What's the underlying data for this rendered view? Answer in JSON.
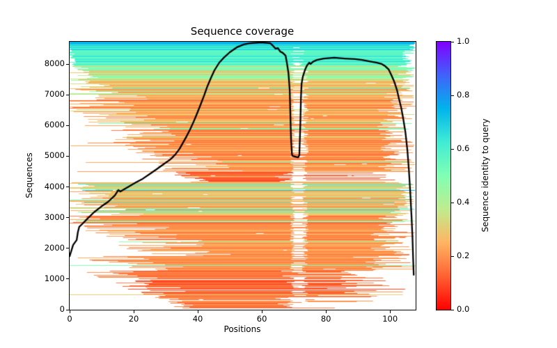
{
  "title": "Sequence coverage",
  "axes": {
    "x": {
      "label": "Positions",
      "ticks": [
        0,
        20,
        40,
        60,
        80,
        100
      ],
      "min": 0,
      "max": 108
    },
    "y": {
      "label": "Sequences",
      "ticks": [
        0,
        1000,
        2000,
        3000,
        4000,
        5000,
        6000,
        7000,
        8000
      ],
      "min": 0,
      "max": 8730
    }
  },
  "colorbar": {
    "label": "Sequence identity to query",
    "ticks": [
      "0.0",
      "0.2",
      "0.4",
      "0.6",
      "0.8",
      "1.0"
    ],
    "min": 0.0,
    "max": 1.0,
    "colormap": "rainbow (0=red, 1=violet)",
    "gradient_stops_bottom_to_top": [
      "#ff0000",
      "#ff6232",
      "#ffb462",
      "#bfec8e",
      "#80ffb4",
      "#40ecd4",
      "#00b4ec",
      "#4062fa",
      "#8000ff"
    ]
  },
  "colors": {
    "background": "#ffffff",
    "coverage_line": "#000000",
    "spine": "#000000",
    "empty_cell": "#ffffff"
  },
  "chart_data": {
    "type": "heatmap",
    "title": "Sequence coverage",
    "xlabel": "Positions",
    "ylabel": "Sequences",
    "xlim": [
      0,
      108
    ],
    "ylim": [
      0,
      8730
    ],
    "n_sequences": 8730,
    "n_positions": 108,
    "legend": "colorbar: Sequence identity to query (0.0 - 1.0)",
    "gap_column": {
      "x_from": 69.5,
      "x_to": 73.5,
      "note": "white low-coverage column causing the dip in the black line"
    },
    "coverage_line": {
      "name": "coverage (number of sequences per position)",
      "color": "#000000",
      "points": [
        [
          0,
          1745
        ],
        [
          1.1,
          2110
        ],
        [
          2.2,
          2270
        ],
        [
          2.6,
          2540
        ],
        [
          3,
          2700
        ],
        [
          3.9,
          2790
        ],
        [
          5.4,
          2950
        ],
        [
          7.6,
          3175
        ],
        [
          9.8,
          3355
        ],
        [
          12,
          3515
        ],
        [
          14.1,
          3720
        ],
        [
          15.2,
          3900
        ],
        [
          15.8,
          3850
        ],
        [
          17,
          3925
        ],
        [
          18.5,
          4015
        ],
        [
          20.7,
          4150
        ],
        [
          22.8,
          4265
        ],
        [
          25,
          4420
        ],
        [
          27.2,
          4580
        ],
        [
          29.3,
          4740
        ],
        [
          31.5,
          4900
        ],
        [
          33,
          5060
        ],
        [
          34.3,
          5240
        ],
        [
          35.4,
          5445
        ],
        [
          36.5,
          5650
        ],
        [
          37.6,
          5875
        ],
        [
          38.7,
          6125
        ],
        [
          39.8,
          6400
        ],
        [
          40.9,
          6690
        ],
        [
          42,
          6985
        ],
        [
          43,
          7280
        ],
        [
          44.1,
          7550
        ],
        [
          45.2,
          7800
        ],
        [
          46.7,
          8050
        ],
        [
          48.3,
          8230
        ],
        [
          50,
          8390
        ],
        [
          52.2,
          8550
        ],
        [
          54.3,
          8640
        ],
        [
          56.5,
          8685
        ],
        [
          59.8,
          8710
        ],
        [
          62.6,
          8685
        ],
        [
          63.5,
          8595
        ],
        [
          64.3,
          8505
        ],
        [
          65,
          8525
        ],
        [
          65.7,
          8415
        ],
        [
          66.5,
          8370
        ],
        [
          67.4,
          8280
        ],
        [
          67.8,
          8050
        ],
        [
          68.3,
          7710
        ],
        [
          68.7,
          7145
        ],
        [
          69.1,
          5555
        ],
        [
          69.4,
          5060
        ],
        [
          69.6,
          5010
        ],
        [
          71.3,
          4965
        ],
        [
          71.7,
          5035
        ],
        [
          72,
          6010
        ],
        [
          72.2,
          6920
        ],
        [
          72.4,
          7370
        ],
        [
          72.8,
          7600
        ],
        [
          73.5,
          7825
        ],
        [
          74.1,
          7960
        ],
        [
          74.8,
          8050
        ],
        [
          75.2,
          8005
        ],
        [
          75.9,
          8075
        ],
        [
          77.2,
          8140
        ],
        [
          79.3,
          8185
        ],
        [
          82.6,
          8210
        ],
        [
          85.9,
          8185
        ],
        [
          89.1,
          8165
        ],
        [
          91.3,
          8140
        ],
        [
          93.5,
          8095
        ],
        [
          95.7,
          8050
        ],
        [
          97.4,
          8005
        ],
        [
          98.5,
          7935
        ],
        [
          99.6,
          7825
        ],
        [
          100.4,
          7645
        ],
        [
          101.1,
          7485
        ],
        [
          101.5,
          7370
        ],
        [
          102.2,
          7145
        ],
        [
          102.8,
          6870
        ],
        [
          103.5,
          6575
        ],
        [
          104.1,
          6235
        ],
        [
          104.8,
          5785
        ],
        [
          105.4,
          5215
        ],
        [
          105.9,
          4535
        ],
        [
          106.3,
          3855
        ],
        [
          106.7,
          3060
        ],
        [
          107,
          2380
        ],
        [
          107.2,
          1700
        ],
        [
          107.4,
          1135
        ]
      ]
    },
    "msa_bands": [
      {
        "seq_from": 8640,
        "seq_to": 8730,
        "start_top": 0,
        "start_bottom": 0,
        "start_jitter": 0,
        "early_frac": 0,
        "end_range": [
          107.5,
          108
        ],
        "gap_prob": 0.06,
        "gap_range": [
          70.2,
          71.2
        ],
        "speck_prob": 0.01,
        "density": 1,
        "palette": [
          [
            1,
            0.73,
            0.78
          ]
        ]
      },
      {
        "seq_from": 8460,
        "seq_to": 8640,
        "start_top": 0,
        "start_bottom": 0,
        "start_jitter": 0.5,
        "early_frac": 0,
        "end_range": [
          106,
          108
        ],
        "gap_prob": 0.12,
        "gap_range": [
          70,
          71.8
        ],
        "speck_prob": 0.02,
        "density": 1,
        "palette": [
          [
            0.6,
            0.66,
            0.74
          ],
          [
            0.4,
            0.58,
            0.66
          ]
        ]
      },
      {
        "seq_from": 7940,
        "seq_to": 8460,
        "start_top": 0,
        "start_bottom": 1,
        "start_jitter": 1.5,
        "early_frac": 0,
        "end_range": [
          103,
          108
        ],
        "gap_prob": 0.28,
        "gap_range": [
          69.8,
          72.6
        ],
        "speck_prob": 0.04,
        "density": 1,
        "palette": [
          [
            0.55,
            0.58,
            0.68
          ],
          [
            0.35,
            0.5,
            0.6
          ],
          [
            0.1,
            0.44,
            0.52
          ]
        ]
      },
      {
        "seq_from": 7560,
        "seq_to": 7940,
        "start_top": 0,
        "start_bottom": 6,
        "start_jitter": 5,
        "early_frac": 0,
        "end_range": [
          102,
          108
        ],
        "gap_prob": 0.4,
        "speck_prob": 0.05,
        "density": 1,
        "palette": [
          [
            0.4,
            0.44,
            0.58
          ],
          [
            0.3,
            0.33,
            0.46
          ],
          [
            0.3,
            0.2,
            0.32
          ]
        ]
      },
      {
        "seq_from": 7280,
        "seq_to": 7560,
        "start_top": 0,
        "start_bottom": 10,
        "start_jitter": 8,
        "early_frac": 0,
        "end_range": [
          100,
          108
        ],
        "gap_prob": 0.48,
        "speck_prob": 0.06,
        "density": 1,
        "palette": [
          [
            0.5,
            0.17,
            0.28
          ],
          [
            0.22,
            0.28,
            0.38
          ],
          [
            0.28,
            0.4,
            0.6
          ]
        ]
      },
      {
        "seq_from": 6850,
        "seq_to": 7280,
        "start_top": 1,
        "start_bottom": 16,
        "start_jitter": 11,
        "early_frac": 0,
        "end_range": [
          98,
          108
        ],
        "gap_prob": 0.5,
        "speck_prob": 0.06,
        "density": 1,
        "palette": [
          [
            0.7,
            0.16,
            0.28
          ],
          [
            0.17,
            0.28,
            0.4
          ],
          [
            0.13,
            0.45,
            0.63
          ]
        ]
      },
      {
        "seq_from": 4480,
        "seq_to": 6850,
        "start_top": 4,
        "start_bottom": 42,
        "start_jitter": 13,
        "early_frac": 0.1,
        "end_range": [
          96,
          108
        ],
        "gap_prob": 0.55,
        "speck_prob": 0.06,
        "density": 1,
        "palette": [
          [
            0.91,
            0.14,
            0.27
          ],
          [
            0.05,
            0.28,
            0.38
          ],
          [
            0.04,
            0.38,
            0.58
          ]
        ]
      },
      {
        "seq_from": 4150,
        "seq_to": 4480,
        "start_top": 35,
        "start_bottom": 40,
        "start_jitter": 4,
        "early_frac": 0,
        "short_end_frac": 0.55,
        "short_end_range": [
          64,
          71
        ],
        "end_range": [
          88,
          104
        ],
        "gap_prob": 0.35,
        "speck_prob": 0.03,
        "density": 1,
        "palette": [
          [
            0.92,
            0.08,
            0.16
          ],
          [
            0.08,
            0.2,
            0.3
          ]
        ]
      },
      {
        "seq_from": 3580,
        "seq_to": 4150,
        "start_top": 1,
        "start_bottom": 8,
        "start_jitter": 8,
        "early_frac": 0.3,
        "end_range": [
          102,
          108
        ],
        "gap_prob": 0.45,
        "speck_prob": 0.04,
        "density": 1,
        "palette": [
          [
            0.4,
            0.2,
            0.3
          ],
          [
            0.15,
            0.7,
            0.78
          ],
          [
            0.15,
            0.53,
            0.68
          ],
          [
            0.12,
            0.4,
            0.5
          ],
          [
            0.18,
            0.27,
            0.36
          ]
        ]
      },
      {
        "seq_from": 3050,
        "seq_to": 3580,
        "start_top": 1,
        "start_bottom": 16,
        "start_jitter": 11,
        "early_frac": 0,
        "end_range": [
          100,
          108
        ],
        "gap_prob": 0.5,
        "speck_prob": 0.05,
        "density": 1,
        "palette": [
          [
            0.76,
            0.16,
            0.28
          ],
          [
            0.15,
            0.5,
            0.66
          ],
          [
            0.09,
            0.38,
            0.48
          ]
        ]
      },
      {
        "seq_from": 1750,
        "seq_to": 3050,
        "start_top": 8,
        "start_bottom": 38,
        "start_jitter": 15,
        "early_frac": 0.07,
        "end_range": [
          94,
          108
        ],
        "gap_prob": 0.55,
        "speck_prob": 0.05,
        "density": 1,
        "palette": [
          [
            0.96,
            0.14,
            0.26
          ],
          [
            0.04,
            0.4,
            0.55
          ]
        ]
      },
      {
        "seq_from": 1280,
        "seq_to": 1750,
        "start_top": 10,
        "start_bottom": 30,
        "start_jitter": 11,
        "early_frac": 0,
        "end_range": [
          88,
          108
        ],
        "gap_prob": 0.55,
        "speck_prob": 0.05,
        "density": 0.95,
        "palette": [
          [
            1,
            0.13,
            0.24
          ]
        ]
      },
      {
        "seq_from": 480,
        "seq_to": 1280,
        "start_top": 12,
        "start_bottom": 33,
        "start_jitter": 10,
        "early_frac": 0,
        "short_end_frac": 0.15,
        "short_end_range": [
          66,
          72
        ],
        "end_range": [
          80,
          108
        ],
        "gap_prob": 0.6,
        "speck_prob": 0.06,
        "density": 0.95,
        "palette": [
          [
            0.8,
            0.11,
            0.2
          ],
          [
            0.2,
            0.07,
            0.12
          ]
        ]
      },
      {
        "seq_from": 50,
        "seq_to": 480,
        "start_top": 28,
        "start_bottom": 37,
        "start_jitter": 4,
        "early_frac": 0,
        "short_end_frac": 0.45,
        "short_end_range": [
          64,
          70
        ],
        "end_range": [
          72,
          104
        ],
        "gap_prob": 0.8,
        "speck_prob": 0.05,
        "density": 0.93,
        "palette": [
          [
            1,
            0.12,
            0.2
          ]
        ]
      }
    ],
    "special_rows": [
      {
        "seq": 2900,
        "identity": 0.45,
        "start": 2,
        "end": 108
      },
      {
        "seq": 1450,
        "identity": 0.5,
        "start": 0,
        "end": 108
      },
      {
        "seq": 500,
        "identity": 0.3,
        "start": 0,
        "end": 104
      }
    ]
  }
}
